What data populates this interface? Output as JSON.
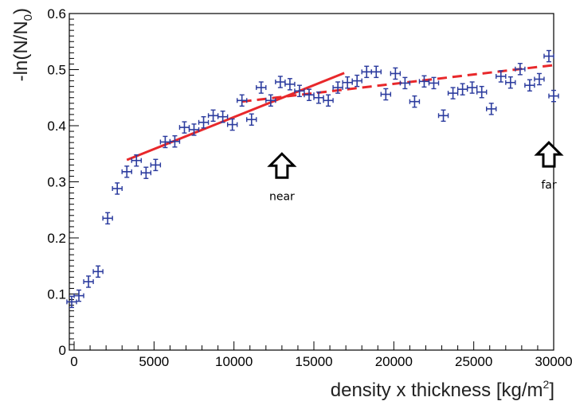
{
  "chart_data": {
    "type": "scatter",
    "title": "",
    "xlabel": "density x thickness",
    "xunit": "[kg/m",
    "xunit_sup": "2",
    "xunit_close": "]",
    "ylabel": "-ln(N/N",
    "ylabel_sub": "0",
    "ylabel_close": ")",
    "xlim": [
      -300,
      30000
    ],
    "ylim": [
      0,
      0.6
    ],
    "x_ticks": [
      0,
      5000,
      10000,
      15000,
      20000,
      25000,
      30000
    ],
    "x_tick_labels": [
      "0",
      "5000",
      "10000",
      "15000",
      "20000",
      "25000",
      "30000"
    ],
    "y_ticks": [
      0,
      0.1,
      0.2,
      0.3,
      0.4,
      0.5,
      0.6
    ],
    "y_tick_labels": [
      "0",
      "0.1",
      "0.2",
      "0.3",
      "0.4",
      "0.5",
      "0.6"
    ],
    "grid": false,
    "series": [
      {
        "marker_color": "#2b3b9e",
        "x_err": 300,
        "y_err": 0.01,
        "points": [
          [
            -150,
            0.086
          ],
          [
            300,
            0.097
          ],
          [
            900,
            0.122
          ],
          [
            1500,
            0.14
          ],
          [
            2100,
            0.235
          ],
          [
            2700,
            0.288
          ],
          [
            3300,
            0.318
          ],
          [
            3900,
            0.338
          ],
          [
            4500,
            0.316
          ],
          [
            5100,
            0.33
          ],
          [
            5700,
            0.371
          ],
          [
            6300,
            0.372
          ],
          [
            6900,
            0.397
          ],
          [
            7500,
            0.393
          ],
          [
            8100,
            0.406
          ],
          [
            8700,
            0.418
          ],
          [
            9300,
            0.416
          ],
          [
            9900,
            0.402
          ],
          [
            10500,
            0.445
          ],
          [
            11100,
            0.411
          ],
          [
            11700,
            0.468
          ],
          [
            12300,
            0.445
          ],
          [
            12900,
            0.478
          ],
          [
            13500,
            0.474
          ],
          [
            14100,
            0.462
          ],
          [
            14700,
            0.455
          ],
          [
            15300,
            0.45
          ],
          [
            15900,
            0.445
          ],
          [
            16500,
            0.468
          ],
          [
            17100,
            0.477
          ],
          [
            17700,
            0.48
          ],
          [
            18300,
            0.496
          ],
          [
            18900,
            0.496
          ],
          [
            19500,
            0.456
          ],
          [
            20100,
            0.493
          ],
          [
            20700,
            0.476
          ],
          [
            21300,
            0.443
          ],
          [
            21900,
            0.479
          ],
          [
            22500,
            0.476
          ],
          [
            23100,
            0.418
          ],
          [
            23700,
            0.458
          ],
          [
            24300,
            0.465
          ],
          [
            24900,
            0.468
          ],
          [
            25500,
            0.46
          ],
          [
            26100,
            0.43
          ],
          [
            26700,
            0.488
          ],
          [
            27300,
            0.477
          ],
          [
            27900,
            0.501
          ],
          [
            28500,
            0.472
          ],
          [
            29100,
            0.483
          ],
          [
            29700,
            0.524
          ],
          [
            30000,
            0.453
          ]
        ]
      }
    ],
    "fits": [
      {
        "style": "solid",
        "color": "#e8282b",
        "x": [
          3300,
          16900
        ],
        "y": [
          0.339,
          0.494
        ]
      },
      {
        "style": "dashed",
        "color": "#e8282b",
        "x": [
          10500,
          30000
        ],
        "y": [
          0.443,
          0.508
        ]
      }
    ],
    "annotations": [
      {
        "label": "near",
        "x": 13000,
        "y": 0.35,
        "symbol": "up-arrow"
      },
      {
        "label": "far",
        "x": 29700,
        "y": 0.37,
        "symbol": "up-arrow"
      }
    ]
  }
}
